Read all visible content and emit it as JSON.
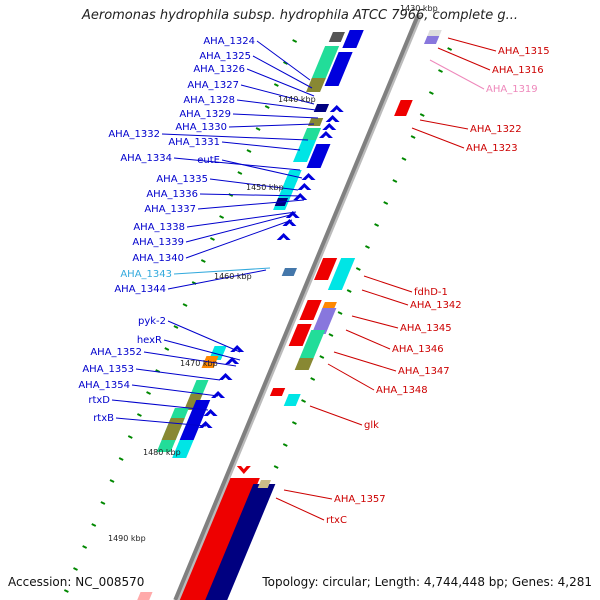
{
  "title": "Aeromonas hydrophila subsp. hydrophila ATCC 7966, complete g...",
  "accession": "Accession: NC_008570",
  "summary": "Topology: circular; Length: 4,744,448 bp; Genes: 4,281",
  "scale_ticks": [
    "1430 kbp",
    "1440 kbp",
    "1450 kbp",
    "1460 kbp",
    "1470 kbp",
    "1480 kbp",
    "1490 kbp"
  ],
  "colors": {
    "backbone": "#808080",
    "forward_label": "#0000cc",
    "reverse_label": "#cc0000",
    "rna_forward_label": "#33aadd",
    "rna_reverse_label": "#ee88bb",
    "blue_arrow": "#0000dd",
    "red_arrow": "#ee0000",
    "cyan_block": "#00e5e5",
    "green_block": "#22dd99",
    "olive_block": "#888833",
    "orange_block": "#ff8800",
    "navy_block": "#000080",
    "purple_block": "#8877dd",
    "scale_tick": "#008800"
  },
  "left_labels": [
    "AHA_1324",
    "AHA_1325",
    "AHA_1326",
    "AHA_1327",
    "AHA_1328",
    "AHA_1329",
    "AHA_1330",
    "AHA_1331",
    "AHA_1332",
    "AHA_1334",
    "eutE",
    "AHA_1335",
    "AHA_1336",
    "AHA_1337",
    "AHA_1338",
    "AHA_1339",
    "AHA_1340",
    "AHA_1343",
    "AHA_1344",
    "pyk-2",
    "hexR",
    "AHA_1352",
    "AHA_1353",
    "AHA_1354",
    "rtxD",
    "rtxB"
  ],
  "right_labels": [
    "AHA_1315",
    "AHA_1316",
    "AHA_1319",
    "AHA_1322",
    "AHA_1323",
    "fdhD-1",
    "AHA_1342",
    "AHA_1345",
    "AHA_1346",
    "AHA_1347",
    "AHA_1348",
    "glk",
    "AHA_1357",
    "rtxC"
  ]
}
